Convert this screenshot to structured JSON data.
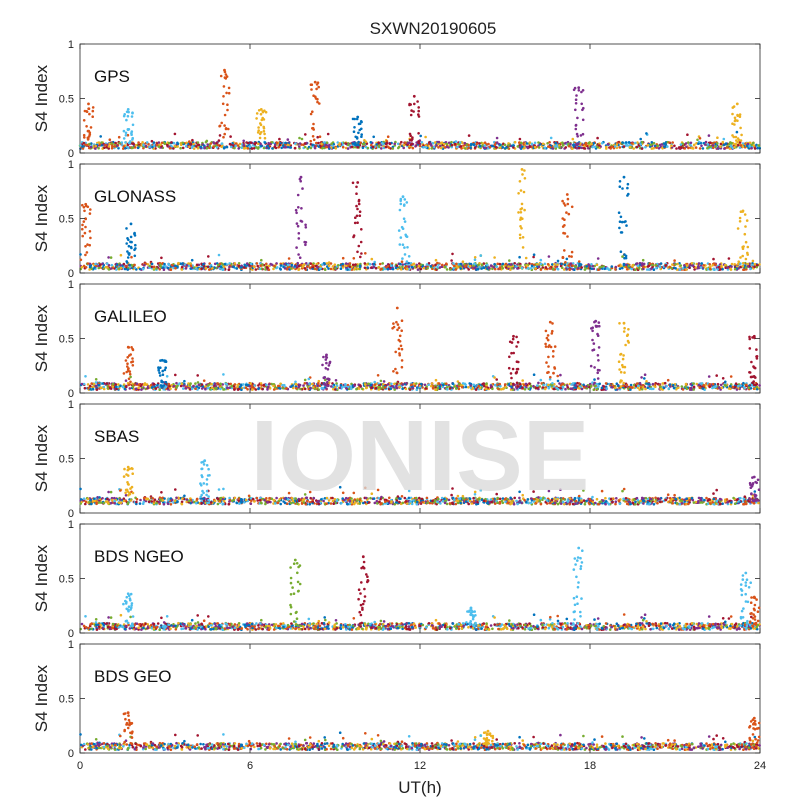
{
  "title": "SXWN20190605",
  "watermark": "IONISE",
  "chart_data": {
    "type": "scatter",
    "title": "SXWN20190605",
    "xlabel": "UT(h)",
    "ylabel": "S4 Index",
    "xlim": [
      0,
      24
    ],
    "ylim": [
      0,
      1
    ],
    "x_ticks": [
      0,
      6,
      12,
      18,
      24
    ],
    "y_ticks": [
      0,
      0.5,
      1
    ],
    "x_tick_labels": [
      "0",
      "6",
      "12",
      "18",
      "24"
    ],
    "y_tick_labels": [
      "0",
      "0.5",
      "1"
    ],
    "grid": false,
    "colors": [
      "#0072BD",
      "#D95319",
      "#EDB120",
      "#7E2F8E",
      "#77AC30",
      "#4DBEEE",
      "#A2142F"
    ],
    "panels": [
      {
        "label": "GPS",
        "baseline": 0.07,
        "spikes": [
          {
            "x": 0.3,
            "peak": 0.45,
            "color": 1
          },
          {
            "x": 1.7,
            "peak": 0.4,
            "color": 5
          },
          {
            "x": 5.1,
            "peak": 0.76,
            "color": 1
          },
          {
            "x": 6.4,
            "peak": 0.4,
            "color": 2
          },
          {
            "x": 8.3,
            "peak": 0.65,
            "color": 1
          },
          {
            "x": 9.8,
            "peak": 0.33,
            "color": 0
          },
          {
            "x": 11.8,
            "peak": 0.52,
            "color": 6
          },
          {
            "x": 17.6,
            "peak": 0.6,
            "color": 3
          },
          {
            "x": 23.2,
            "peak": 0.45,
            "color": 2
          }
        ]
      },
      {
        "label": "GLONASS",
        "baseline": 0.06,
        "spikes": [
          {
            "x": 0.2,
            "peak": 0.63,
            "color": 1
          },
          {
            "x": 1.8,
            "peak": 0.45,
            "color": 0
          },
          {
            "x": 7.8,
            "peak": 0.88,
            "color": 3
          },
          {
            "x": 9.8,
            "peak": 0.83,
            "color": 6
          },
          {
            "x": 11.4,
            "peak": 0.7,
            "color": 5
          },
          {
            "x": 15.6,
            "peak": 0.95,
            "color": 2
          },
          {
            "x": 17.2,
            "peak": 0.72,
            "color": 1
          },
          {
            "x": 19.2,
            "peak": 0.88,
            "color": 0
          },
          {
            "x": 23.4,
            "peak": 0.57,
            "color": 2
          }
        ]
      },
      {
        "label": "GALILEO",
        "baseline": 0.06,
        "spikes": [
          {
            "x": 1.7,
            "peak": 0.42,
            "color": 1
          },
          {
            "x": 2.9,
            "peak": 0.3,
            "color": 0
          },
          {
            "x": 8.7,
            "peak": 0.35,
            "color": 3
          },
          {
            "x": 11.2,
            "peak": 0.78,
            "color": 1
          },
          {
            "x": 15.3,
            "peak": 0.52,
            "color": 6
          },
          {
            "x": 16.6,
            "peak": 0.65,
            "color": 1
          },
          {
            "x": 18.2,
            "peak": 0.66,
            "color": 3
          },
          {
            "x": 19.2,
            "peak": 0.64,
            "color": 2
          },
          {
            "x": 23.8,
            "peak": 0.52,
            "color": 6
          }
        ]
      },
      {
        "label": "SBAS",
        "baseline": 0.11,
        "spikes": [
          {
            "x": 1.7,
            "peak": 0.42,
            "color": 2
          },
          {
            "x": 4.4,
            "peak": 0.48,
            "color": 5
          },
          {
            "x": 23.8,
            "peak": 0.33,
            "color": 3
          }
        ]
      },
      {
        "label": "BDS NGEO",
        "baseline": 0.06,
        "spikes": [
          {
            "x": 1.7,
            "peak": 0.36,
            "color": 5
          },
          {
            "x": 7.6,
            "peak": 0.67,
            "color": 4
          },
          {
            "x": 10.0,
            "peak": 0.7,
            "color": 6
          },
          {
            "x": 13.8,
            "peak": 0.23,
            "color": 5
          },
          {
            "x": 17.6,
            "peak": 0.78,
            "color": 5
          },
          {
            "x": 23.5,
            "peak": 0.55,
            "color": 5
          },
          {
            "x": 23.8,
            "peak": 0.33,
            "color": 1
          }
        ]
      },
      {
        "label": "BDS GEO",
        "baseline": 0.06,
        "spikes": [
          {
            "x": 1.7,
            "peak": 0.37,
            "color": 1
          },
          {
            "x": 14.4,
            "peak": 0.2,
            "color": 2
          },
          {
            "x": 23.8,
            "peak": 0.32,
            "color": 1
          }
        ]
      }
    ]
  }
}
